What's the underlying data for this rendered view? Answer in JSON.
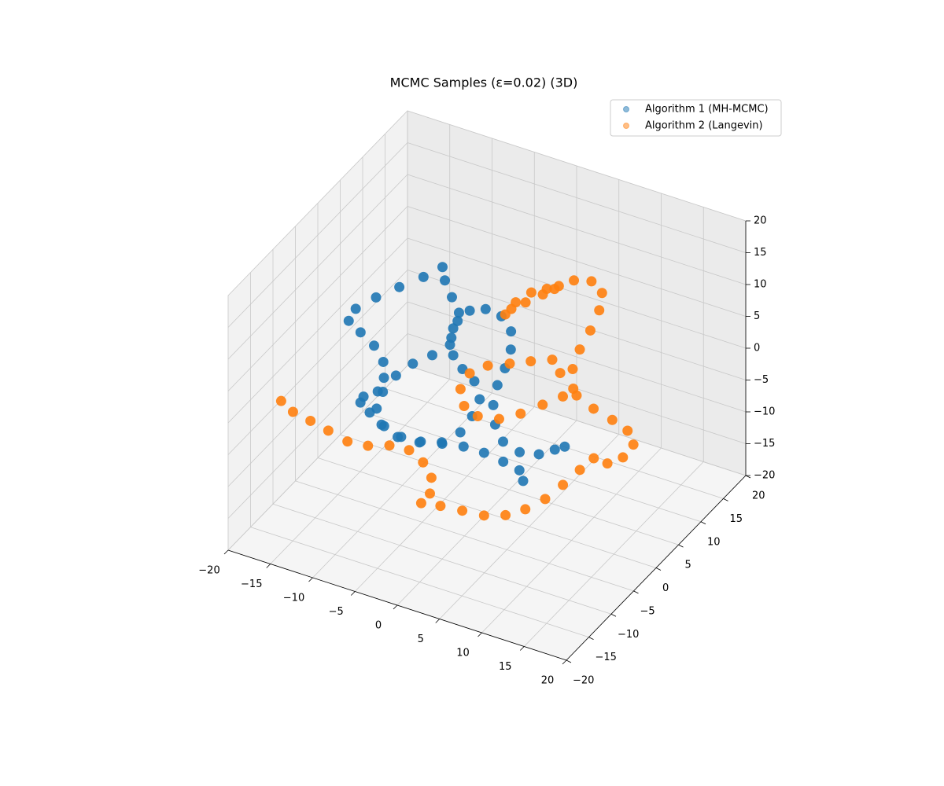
{
  "chart_data": {
    "type": "scatter3d",
    "title": "MCMC Samples (ε=0.02) (3D)",
    "legend": "upper right",
    "grid": true,
    "xlim": [
      -20,
      20
    ],
    "ylim": [
      -20,
      20
    ],
    "zlim": [
      -20,
      20
    ],
    "xticks": [
      {
        "value": -20,
        "label": "−20"
      },
      {
        "value": -15,
        "label": "−15"
      },
      {
        "value": -10,
        "label": "−10"
      },
      {
        "value": -5,
        "label": "−5"
      },
      0,
      5,
      10,
      15,
      20
    ],
    "yticks": [
      {
        "value": -20,
        "label": "−20"
      },
      {
        "value": -15,
        "label": "−15"
      },
      {
        "value": -10,
        "label": "−10"
      },
      {
        "value": -5,
        "label": "−5"
      },
      0,
      5,
      10,
      15,
      20
    ],
    "zticks": [
      {
        "value": -20,
        "label": "−20"
      },
      {
        "value": -15,
        "label": "−15"
      },
      {
        "value": -10,
        "label": "−10"
      },
      {
        "value": -5,
        "label": "−5"
      },
      0,
      5,
      10,
      15,
      20
    ],
    "series": [
      {
        "name": "Algorithm 1 (MH-MCMC)",
        "color": "#1f77b4",
        "x": [
          7.3,
          6.7,
          5.0,
          3.0,
          1.0,
          -1.0,
          -3.0,
          -4.9,
          -6.7,
          -8.4,
          -9.5,
          -9.4,
          -8.3,
          -8.1,
          -8.6,
          -9.9,
          -11.5,
          -12.9,
          -12.6,
          -11.1,
          -9.3,
          -7.4,
          -6.0,
          -5.4,
          -4.3,
          -3.2,
          -3.3,
          -3.1,
          -4.4,
          -5.9,
          -7.1,
          -7.8,
          -7.9,
          -7.0,
          -5.2,
          -3.1,
          -1.1,
          0.3,
          0.9,
          1.1,
          0.1,
          -1.3,
          -2.5,
          -3.2,
          -3.1,
          -2.3,
          -0.9,
          0.7,
          2.0,
          2.5,
          2.5,
          2.3,
          2.5,
          3.2,
          4.4,
          6.2,
          8.0,
          9.3,
          10.1
        ],
        "y": [
          -5.7,
          -5.4,
          -5.8,
          -6.3,
          -7.1,
          -8.1,
          -9.1,
          -9.9,
          -10.3,
          -10.3,
          -10.3,
          -9.8,
          -8.7,
          -7.7,
          -6.9,
          -6.5,
          -6.5,
          -6.5,
          -5.5,
          -3.8,
          -2.0,
          -0.2,
          1.4,
          0.8,
          0.3,
          -0.2,
          -1.3,
          -2.4,
          -3.9,
          -5.4,
          -6.9,
          -8.5,
          -9.7,
          -10.3,
          -10.1,
          -9.2,
          -8.0,
          -6.5,
          -5.0,
          -3.7,
          -3.0,
          -3.0,
          -2.8,
          -1.9,
          -0.7,
          0.5,
          1.4,
          1.9,
          1.6,
          0.6,
          -0.7,
          -2.0,
          -3.3,
          -4.2,
          -4.7,
          -4.4,
          -3.5,
          -2.4,
          -1.7
        ],
        "z": [
          -7.7,
          -6.5,
          -5.6,
          -4.7,
          -4.0,
          -3.7,
          -3.5,
          -3.0,
          -1.8,
          -0.4,
          0.7,
          1.3,
          1.8,
          3.3,
          5.0,
          6.7,
          8.1,
          9.3,
          10.6,
          11.8,
          12.9,
          14.0,
          15.0,
          13.6,
          11.8,
          10.2,
          8.5,
          6.8,
          5.7,
          4.8,
          3.5,
          1.8,
          0,
          -1.7,
          -3.0,
          -3.6,
          -3.6,
          -2.5,
          -0.8,
          1.0,
          2.9,
          4.2,
          5.7,
          7.5,
          9.3,
          10.4,
          10.6,
          9.8,
          8.2,
          6.3,
          4.3,
          2.5,
          0.4,
          -1.7,
          -3.5,
          -4.6,
          -4.8,
          -4.3,
          -4.0
        ]
      },
      {
        "name": "Algorithm 2 (Langevin)",
        "color": "#ff7f0e",
        "x": [
          -16.7,
          -15.3,
          -13.5,
          -11.6,
          -9.6,
          -7.6,
          -5.7,
          -3.8,
          -2.2,
          -1.0,
          -0.7,
          -1.2,
          0.6,
          2.7,
          4.8,
          6.7,
          8.3,
          9.8,
          11.0,
          12.1,
          13.0,
          14.4,
          15.6,
          16.2,
          15.3,
          13.6,
          11.6,
          9.7,
          7.6,
          6.5,
          4.6,
          2.8,
          0.9,
          -0.5,
          -0.9,
          -0.1,
          1.4,
          3.4,
          5.2,
          6.9,
          8.5,
          9.2,
          8.6,
          8.7,
          9.1,
          9.3,
          9.1,
          7.8,
          6.2,
          5.0,
          3.8,
          2.5,
          1.4,
          1.0,
          1.6,
          2.7,
          4.0,
          4.7
        ],
        "y": [
          -14.4,
          -14.4,
          -13.9,
          -13.5,
          -13.0,
          -12.2,
          -11.0,
          -10.2,
          -10.1,
          -10.5,
          -11.4,
          -12.4,
          -11.5,
          -10.6,
          -9.7,
          -8.5,
          -7.1,
          -5.5,
          -3.8,
          -2.1,
          -0.7,
          -0.3,
          0.9,
          2.1,
          2.5,
          2.3,
          1.9,
          1.7,
          2.0,
          2.3,
          1.1,
          -0.2,
          -1.5,
          -2.9,
          -4.2,
          -4.9,
          -4.7,
          -3.7,
          -2.3,
          -0.6,
          0.9,
          1.9,
          2.9,
          4.3,
          5.9,
          7.5,
          8.5,
          8.6,
          7.7,
          6.6,
          5.3,
          3.9,
          2.8,
          2.2,
          3.4,
          4.8,
          5.8,
          6.2
        ],
        "z": [
          0.8,
          -0.3,
          -1.3,
          -2.3,
          -3.5,
          -3.9,
          -3.9,
          -4.4,
          -5.7,
          -7.3,
          -9.0,
          -10.0,
          -10.3,
          -10.8,
          -11.3,
          -11.3,
          -10.7,
          -9.6,
          -8.1,
          -6.5,
          -5.3,
          -5.8,
          -5.2,
          -3.8,
          -2.3,
          -1.2,
          0,
          1.4,
          3.8,
          5.2,
          5.0,
          4.8,
          4.6,
          3.8,
          2.1,
          0.3,
          -0.8,
          -1.1,
          -0.5,
          0.4,
          1.3,
          2.1,
          4.2,
          6.3,
          8.3,
          10.4,
          12.3,
          13.5,
          13.6,
          13.0,
          12.1,
          11.3,
          10.6,
          10.0,
          11.3,
          12.3,
          12.7,
          12.7
        ]
      }
    ]
  }
}
